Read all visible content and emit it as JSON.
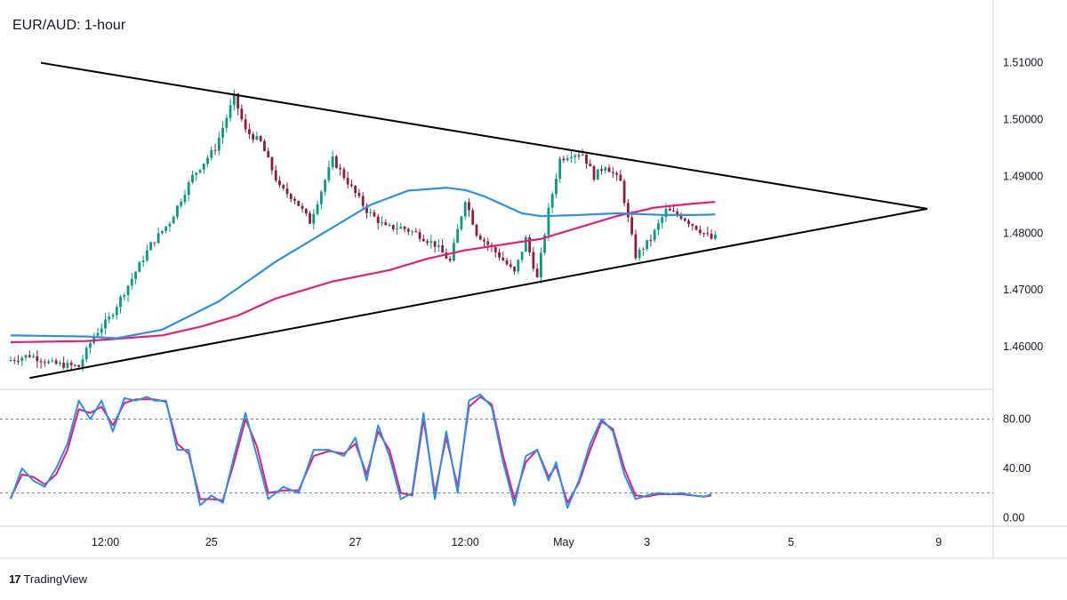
{
  "header": {
    "title": "EUR/AUD: 1-hour"
  },
  "branding": {
    "logo_icon": "tradingview-logo-icon",
    "text": "TradingView"
  },
  "colors": {
    "up_candle": "#089981",
    "down_candle": "#8a1e3c",
    "ma_fast": "#2f8fe0",
    "ma_slow": "#e0217a",
    "stoch_k": "#2f8fe0",
    "stoch_d": "#e0217a",
    "trendline": "#000000",
    "grid": "#d1d4dc"
  },
  "chart_data": [
    {
      "type": "candlestick",
      "title": "EUR/AUD: 1-hour",
      "y_ticks": [
        "1.51000",
        "1.50000",
        "1.49000",
        "1.48000",
        "1.47000",
        "1.46000"
      ],
      "ylim": [
        1.4525,
        1.5195
      ],
      "x_ticks": [
        "12:00",
        "25",
        "27",
        "12:00",
        "May",
        "3",
        "5",
        "9"
      ],
      "grid": false,
      "series_price_path": {
        "index": [
          0,
          6,
          12,
          19,
          23,
          27,
          33,
          38,
          43,
          49,
          55,
          60,
          63,
          67,
          72,
          76,
          80,
          86,
          91,
          95,
          100,
          104,
          108,
          113,
          117,
          121,
          124,
          127,
          130,
          134,
          137,
          140,
          143,
          146,
          149,
          152,
          155,
          158,
          162,
          166,
          170,
          174,
          178,
          182,
          186,
          190
        ],
        "price": [
          1.4575,
          1.4585,
          1.457,
          1.4565,
          1.462,
          1.465,
          1.472,
          1.478,
          1.482,
          1.49,
          1.495,
          1.504,
          1.498,
          1.496,
          1.488,
          1.486,
          1.482,
          1.493,
          1.488,
          1.484,
          1.481,
          1.481,
          1.48,
          1.478,
          1.475,
          1.486,
          1.48,
          1.478,
          1.476,
          1.473,
          1.479,
          1.472,
          1.484,
          1.493,
          1.494,
          1.494,
          1.49,
          1.492,
          1.489,
          1.476,
          1.479,
          1.484,
          1.483,
          1.481,
          1.479,
          1.48
        ]
      },
      "overlays": {
        "ma_fast": {
          "index": [
            0,
            20,
            28,
            40,
            55,
            70,
            85,
            95,
            105,
            115,
            120,
            125,
            135,
            140,
            150,
            160,
            165,
            172,
            180,
            186
          ],
          "price": [
            1.462,
            1.4618,
            1.4615,
            1.463,
            1.468,
            1.475,
            1.481,
            1.485,
            1.4875,
            1.488,
            1.4876,
            1.4865,
            1.4835,
            1.483,
            1.4832,
            1.4835,
            1.4834,
            1.4832,
            1.4832,
            1.4833
          ]
        },
        "ma_slow": {
          "index": [
            0,
            20,
            40,
            50,
            60,
            70,
            85,
            100,
            110,
            120,
            130,
            140,
            150,
            160,
            170,
            180,
            186
          ],
          "price": [
            1.4608,
            1.461,
            1.462,
            1.4635,
            1.4655,
            1.4685,
            1.4715,
            1.4735,
            1.4755,
            1.477,
            1.478,
            1.479,
            1.481,
            1.483,
            1.4845,
            1.4852,
            1.4855
          ]
        }
      },
      "trendlines": [
        {
          "name": "upper",
          "index": [
            8,
            242
          ],
          "price": [
            1.51,
            1.4843
          ]
        },
        {
          "name": "lower",
          "index": [
            5,
            242
          ],
          "price": [
            1.4545,
            1.4843
          ]
        }
      ]
    },
    {
      "type": "line",
      "title": "",
      "y_ticks": [
        "80.00",
        "40.00",
        "0.00"
      ],
      "ylim": [
        -7,
        102
      ],
      "reference_lines": [
        80,
        20
      ],
      "series": [
        {
          "index": [
            0,
            3,
            6,
            9,
            12,
            15,
            18,
            21,
            24,
            27,
            30,
            33,
            36,
            38,
            41,
            44,
            47,
            50,
            53,
            56,
            59,
            62,
            65,
            68,
            72,
            76,
            80,
            84,
            88,
            91,
            94,
            97,
            100,
            103,
            106,
            109,
            112,
            115,
            118,
            121,
            124,
            127,
            130,
            133,
            136,
            139,
            142,
            144,
            147,
            150,
            153,
            156,
            159,
            162,
            165,
            168,
            171,
            174,
            177,
            180,
            183,
            185
          ],
          "value": [
            15,
            40,
            30,
            25,
            40,
            60,
            95,
            80,
            95,
            70,
            97,
            95,
            98,
            95,
            95,
            55,
            55,
            10,
            18,
            12,
            50,
            85,
            50,
            15,
            25,
            20,
            55,
            55,
            50,
            65,
            30,
            75,
            50,
            15,
            20,
            85,
            15,
            70,
            20,
            95,
            100,
            90,
            45,
            10,
            50,
            55,
            30,
            45,
            8,
            30,
            60,
            80,
            70,
            35,
            15,
            18,
            20,
            19,
            20,
            18,
            17,
            19
          ]
        },
        {
          "index": [
            0,
            3,
            6,
            9,
            12,
            15,
            18,
            21,
            24,
            27,
            30,
            33,
            36,
            38,
            41,
            44,
            47,
            50,
            53,
            56,
            59,
            62,
            65,
            68,
            72,
            76,
            80,
            84,
            88,
            91,
            94,
            97,
            100,
            103,
            106,
            109,
            112,
            115,
            118,
            121,
            124,
            127,
            130,
            133,
            136,
            139,
            142,
            144,
            147,
            150,
            153,
            156,
            159,
            162,
            165,
            168,
            171,
            174,
            177,
            180,
            183,
            185
          ],
          "value": [
            16,
            35,
            33,
            27,
            35,
            55,
            88,
            85,
            90,
            75,
            93,
            96,
            96,
            96,
            94,
            60,
            52,
            15,
            15,
            14,
            45,
            80,
            58,
            20,
            22,
            22,
            50,
            54,
            52,
            60,
            35,
            70,
            55,
            20,
            18,
            80,
            20,
            65,
            25,
            90,
            98,
            92,
            50,
            15,
            45,
            55,
            33,
            42,
            12,
            28,
            55,
            78,
            72,
            40,
            18,
            17,
            19,
            19,
            19,
            18,
            17,
            18
          ]
        }
      ]
    }
  ]
}
